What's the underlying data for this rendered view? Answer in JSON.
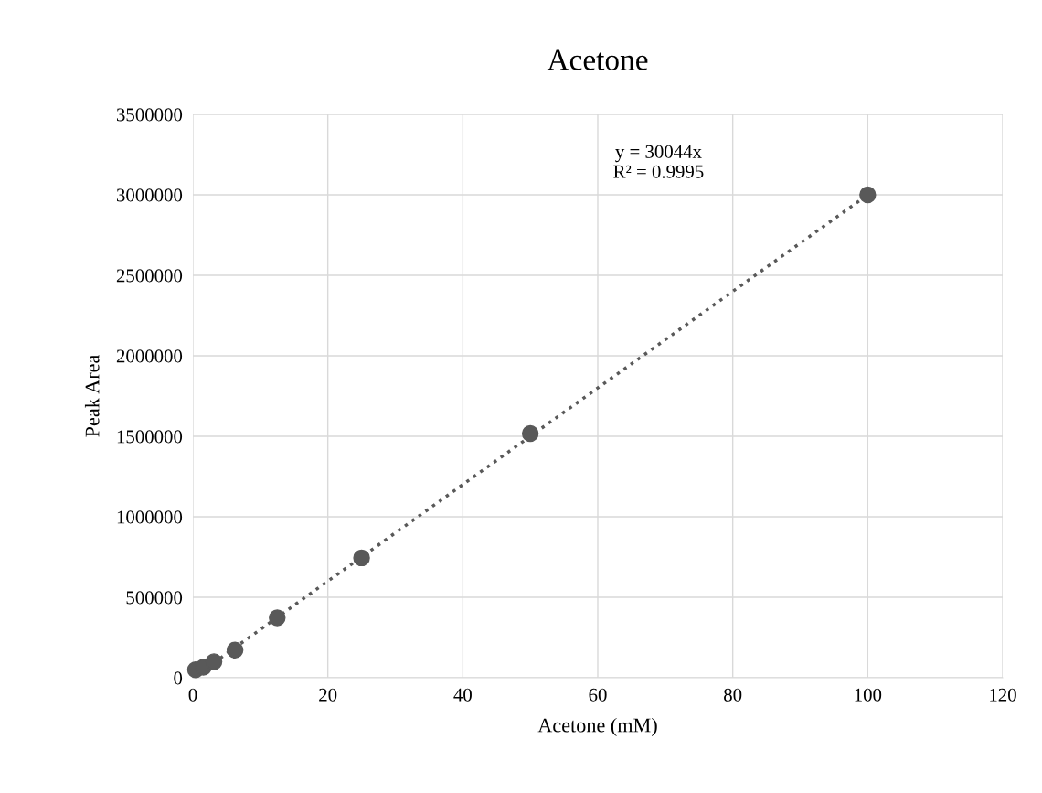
{
  "chart_data": {
    "type": "scatter",
    "title": "Acetone",
    "xlabel": "Acetone (mM)",
    "ylabel": "Peak Area",
    "series": [
      {
        "color": "#595959",
        "marker": "circle",
        "x": [
          0.4,
          1.5625,
          3.125,
          6.25,
          12.5,
          25,
          50,
          100
        ],
        "values": [
          50000,
          65000,
          100000,
          172000,
          372000,
          745000,
          1517000,
          3000000
        ]
      },
      {
        "type": "line",
        "color": "#595959",
        "line_style": "dotted",
        "marker": "none",
        "x": [
          0,
          100
        ],
        "values": [
          0,
          3000000
        ]
      }
    ],
    "annotations": [
      "y = 30044x\nR² = 0.9995"
    ],
    "xlim": [
      0,
      120
    ],
    "xticks": [
      0,
      20,
      40,
      60,
      80,
      100,
      120
    ],
    "ylim": [
      0,
      3500000
    ],
    "yticks": [
      0,
      500000,
      1000000,
      1500000,
      2000000,
      2500000,
      3000000,
      3500000
    ],
    "grid": true
  }
}
